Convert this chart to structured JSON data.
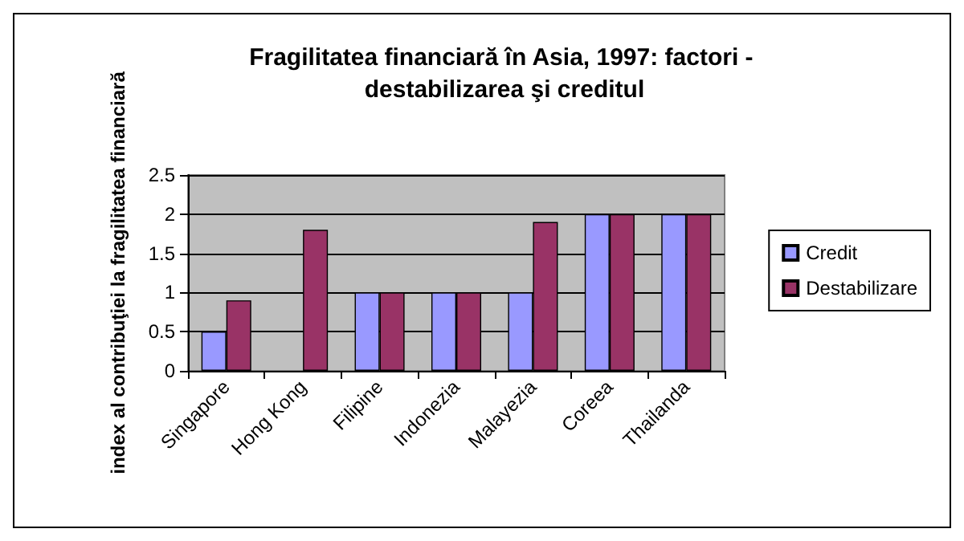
{
  "chart_data": {
    "type": "bar",
    "title": "Fragilitatea financiară în Asia, 1997: factori - destabilizarea şi creditul",
    "ylabel": "index al contribuţiei la fragilitatea financiară",
    "categories": [
      "Singapore",
      "Hong Kong",
      "Filipine",
      "Indonezia",
      "Malayezia",
      "Coreea",
      "Thailanda"
    ],
    "series": [
      {
        "name": "Credit",
        "color": "#9999ff",
        "values": [
          0.5,
          null,
          1,
          1,
          1,
          2,
          2
        ]
      },
      {
        "name": "Destabilizare",
        "color": "#993366",
        "values": [
          0.9,
          1.8,
          1,
          1,
          1.9,
          2,
          2
        ]
      }
    ],
    "ylim": [
      0,
      2.5
    ],
    "yticks": [
      0,
      0.5,
      1,
      1.5,
      2,
      2.5
    ],
    "grid": "y",
    "legend": "right"
  }
}
